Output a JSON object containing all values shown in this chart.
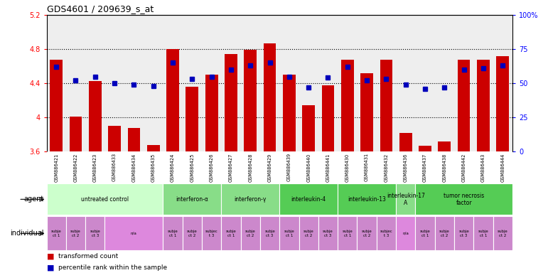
{
  "title": "GDS4601 / 209639_s_at",
  "samples": [
    "GSM886421",
    "GSM886422",
    "GSM886423",
    "GSM886433",
    "GSM886434",
    "GSM886435",
    "GSM886424",
    "GSM886425",
    "GSM886426",
    "GSM886427",
    "GSM886428",
    "GSM886429",
    "GSM886439",
    "GSM886440",
    "GSM886441",
    "GSM886430",
    "GSM886431",
    "GSM886432",
    "GSM886436",
    "GSM886437",
    "GSM886438",
    "GSM886442",
    "GSM886443",
    "GSM886444"
  ],
  "bar_values": [
    4.68,
    4.01,
    4.43,
    3.9,
    3.88,
    3.68,
    4.8,
    4.36,
    4.5,
    4.74,
    4.79,
    4.87,
    4.5,
    4.14,
    4.38,
    4.68,
    4.52,
    4.68,
    3.82,
    3.67,
    3.72,
    4.68,
    4.68,
    4.72
  ],
  "percentile_values": [
    62,
    52,
    55,
    50,
    49,
    48,
    65,
    53,
    55,
    60,
    63,
    65,
    55,
    47,
    54,
    62,
    52,
    53,
    49,
    46,
    47,
    60,
    61,
    63
  ],
  "ymin": 3.6,
  "ymax": 5.2,
  "yticks": [
    3.6,
    4.0,
    4.4,
    4.8,
    5.2
  ],
  "ytick_labels": [
    "3.6",
    "4",
    "4.4",
    "4.8",
    "5.2"
  ],
  "right_yticks": [
    0,
    25,
    50,
    75,
    100
  ],
  "right_ytick_labels": [
    "0",
    "25",
    "50",
    "75",
    "100%"
  ],
  "dotted_lines": [
    4.0,
    4.4,
    4.8
  ],
  "bar_color": "#cc0000",
  "percentile_color": "#0000bb",
  "agent_spans": [
    {
      "label": "untreated control",
      "start": 0,
      "end": 5,
      "color": "#ccffcc"
    },
    {
      "label": "interferon-α",
      "start": 6,
      "end": 8,
      "color": "#88dd88"
    },
    {
      "label": "interferon-γ",
      "start": 9,
      "end": 11,
      "color": "#88dd88"
    },
    {
      "label": "interleukin-4",
      "start": 12,
      "end": 14,
      "color": "#55cc55"
    },
    {
      "label": "interleukin-13",
      "start": 15,
      "end": 17,
      "color": "#55cc55"
    },
    {
      "label": "interleukin-17\nA",
      "start": 18,
      "end": 18,
      "color": "#88dd88"
    },
    {
      "label": "tumor necrosis\nfactor",
      "start": 19,
      "end": 23,
      "color": "#55cc55"
    }
  ],
  "indiv_spans": [
    {
      "label": "subje\nct 1",
      "start": 0,
      "end": 0,
      "color": "#cc88cc"
    },
    {
      "label": "subje\nct 2",
      "start": 1,
      "end": 1,
      "color": "#cc88cc"
    },
    {
      "label": "subje\nct 3",
      "start": 2,
      "end": 2,
      "color": "#cc88cc"
    },
    {
      "label": "n/a",
      "start": 3,
      "end": 5,
      "color": "#dd88dd"
    },
    {
      "label": "subje\nct 1",
      "start": 6,
      "end": 6,
      "color": "#cc88cc"
    },
    {
      "label": "subje\nct 2",
      "start": 7,
      "end": 7,
      "color": "#cc88cc"
    },
    {
      "label": "subjec\nt 3",
      "start": 8,
      "end": 8,
      "color": "#cc88cc"
    },
    {
      "label": "subje\nct 1",
      "start": 9,
      "end": 9,
      "color": "#cc88cc"
    },
    {
      "label": "subje\nct 2",
      "start": 10,
      "end": 10,
      "color": "#cc88cc"
    },
    {
      "label": "subje\nct 3",
      "start": 11,
      "end": 11,
      "color": "#cc88cc"
    },
    {
      "label": "subje\nct 1",
      "start": 12,
      "end": 12,
      "color": "#cc88cc"
    },
    {
      "label": "subje\nct 2",
      "start": 13,
      "end": 13,
      "color": "#cc88cc"
    },
    {
      "label": "subje\nct 3",
      "start": 14,
      "end": 14,
      "color": "#cc88cc"
    },
    {
      "label": "subje\nct 1",
      "start": 15,
      "end": 15,
      "color": "#cc88cc"
    },
    {
      "label": "subje\nct 2",
      "start": 16,
      "end": 16,
      "color": "#cc88cc"
    },
    {
      "label": "subjec\nt 3",
      "start": 17,
      "end": 17,
      "color": "#cc88cc"
    },
    {
      "label": "n/a",
      "start": 18,
      "end": 18,
      "color": "#dd88dd"
    },
    {
      "label": "subje\nct 1",
      "start": 19,
      "end": 19,
      "color": "#cc88cc"
    },
    {
      "label": "subje\nct 2",
      "start": 20,
      "end": 20,
      "color": "#cc88cc"
    },
    {
      "label": "subje\nct 3",
      "start": 21,
      "end": 21,
      "color": "#cc88cc"
    },
    {
      "label": "subje\nct 1",
      "start": 22,
      "end": 22,
      "color": "#cc88cc"
    },
    {
      "label": "subje\nct 2",
      "start": 23,
      "end": 23,
      "color": "#cc88cc"
    }
  ],
  "bg_color": "#ffffff",
  "plot_bg": "#eeeeee"
}
